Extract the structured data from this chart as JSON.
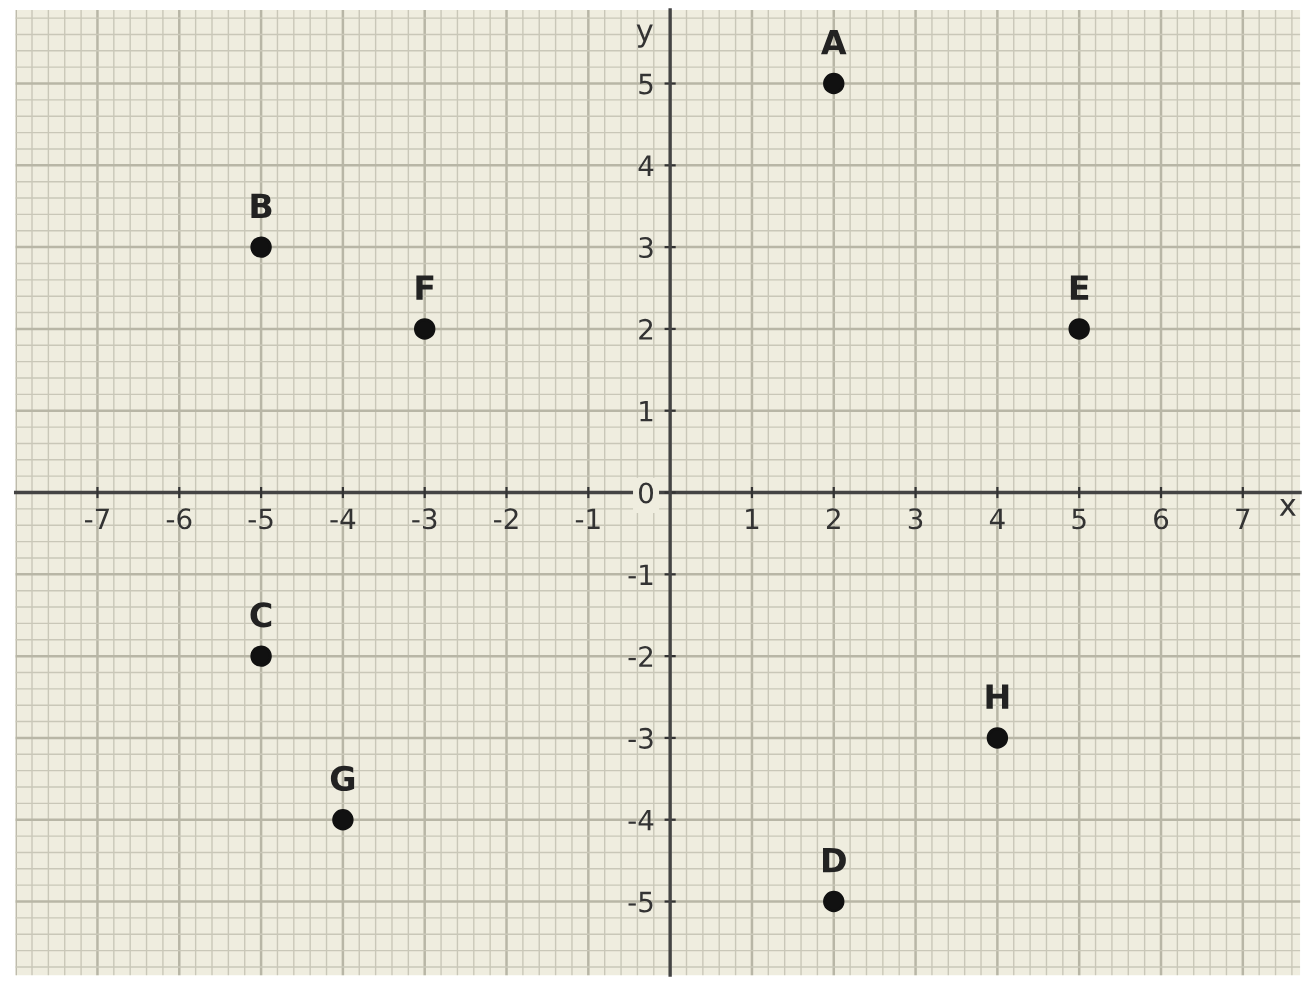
{
  "chart_data": {
    "type": "scatter",
    "xlabel": "x",
    "ylabel": "y",
    "series": [
      {
        "color": "#111111",
        "x": [
          2,
          -5,
          -5,
          2,
          5,
          -3,
          -4,
          4
        ],
        "values": [
          5,
          3,
          -2,
          -5,
          2,
          2,
          -4,
          -3
        ]
      }
    ],
    "annotations": [
      {
        "text": "A",
        "x": 2,
        "y": 5
      },
      {
        "text": "B",
        "x": -5,
        "y": 3
      },
      {
        "text": "C",
        "x": -5,
        "y": -2
      },
      {
        "text": "D",
        "x": 2,
        "y": -5
      },
      {
        "text": "E",
        "x": 5,
        "y": 2
      },
      {
        "text": "F",
        "x": -3,
        "y": 2
      },
      {
        "text": "G",
        "x": -4,
        "y": -4
      },
      {
        "text": "H",
        "x": 4,
        "y": -3
      }
    ],
    "xlim": [
      -8,
      7.7
    ],
    "ylim": [
      -5.9,
      5.9
    ],
    "xticks": [
      -7,
      -6,
      -5,
      -4,
      -3,
      -2,
      -1,
      1,
      2,
      3,
      4,
      5,
      6,
      7
    ],
    "yticks": [
      -5,
      -4,
      -3,
      -2,
      -1,
      0,
      1,
      2,
      3,
      4,
      5
    ],
    "grid": true,
    "marker": "circle",
    "legend": false
  }
}
